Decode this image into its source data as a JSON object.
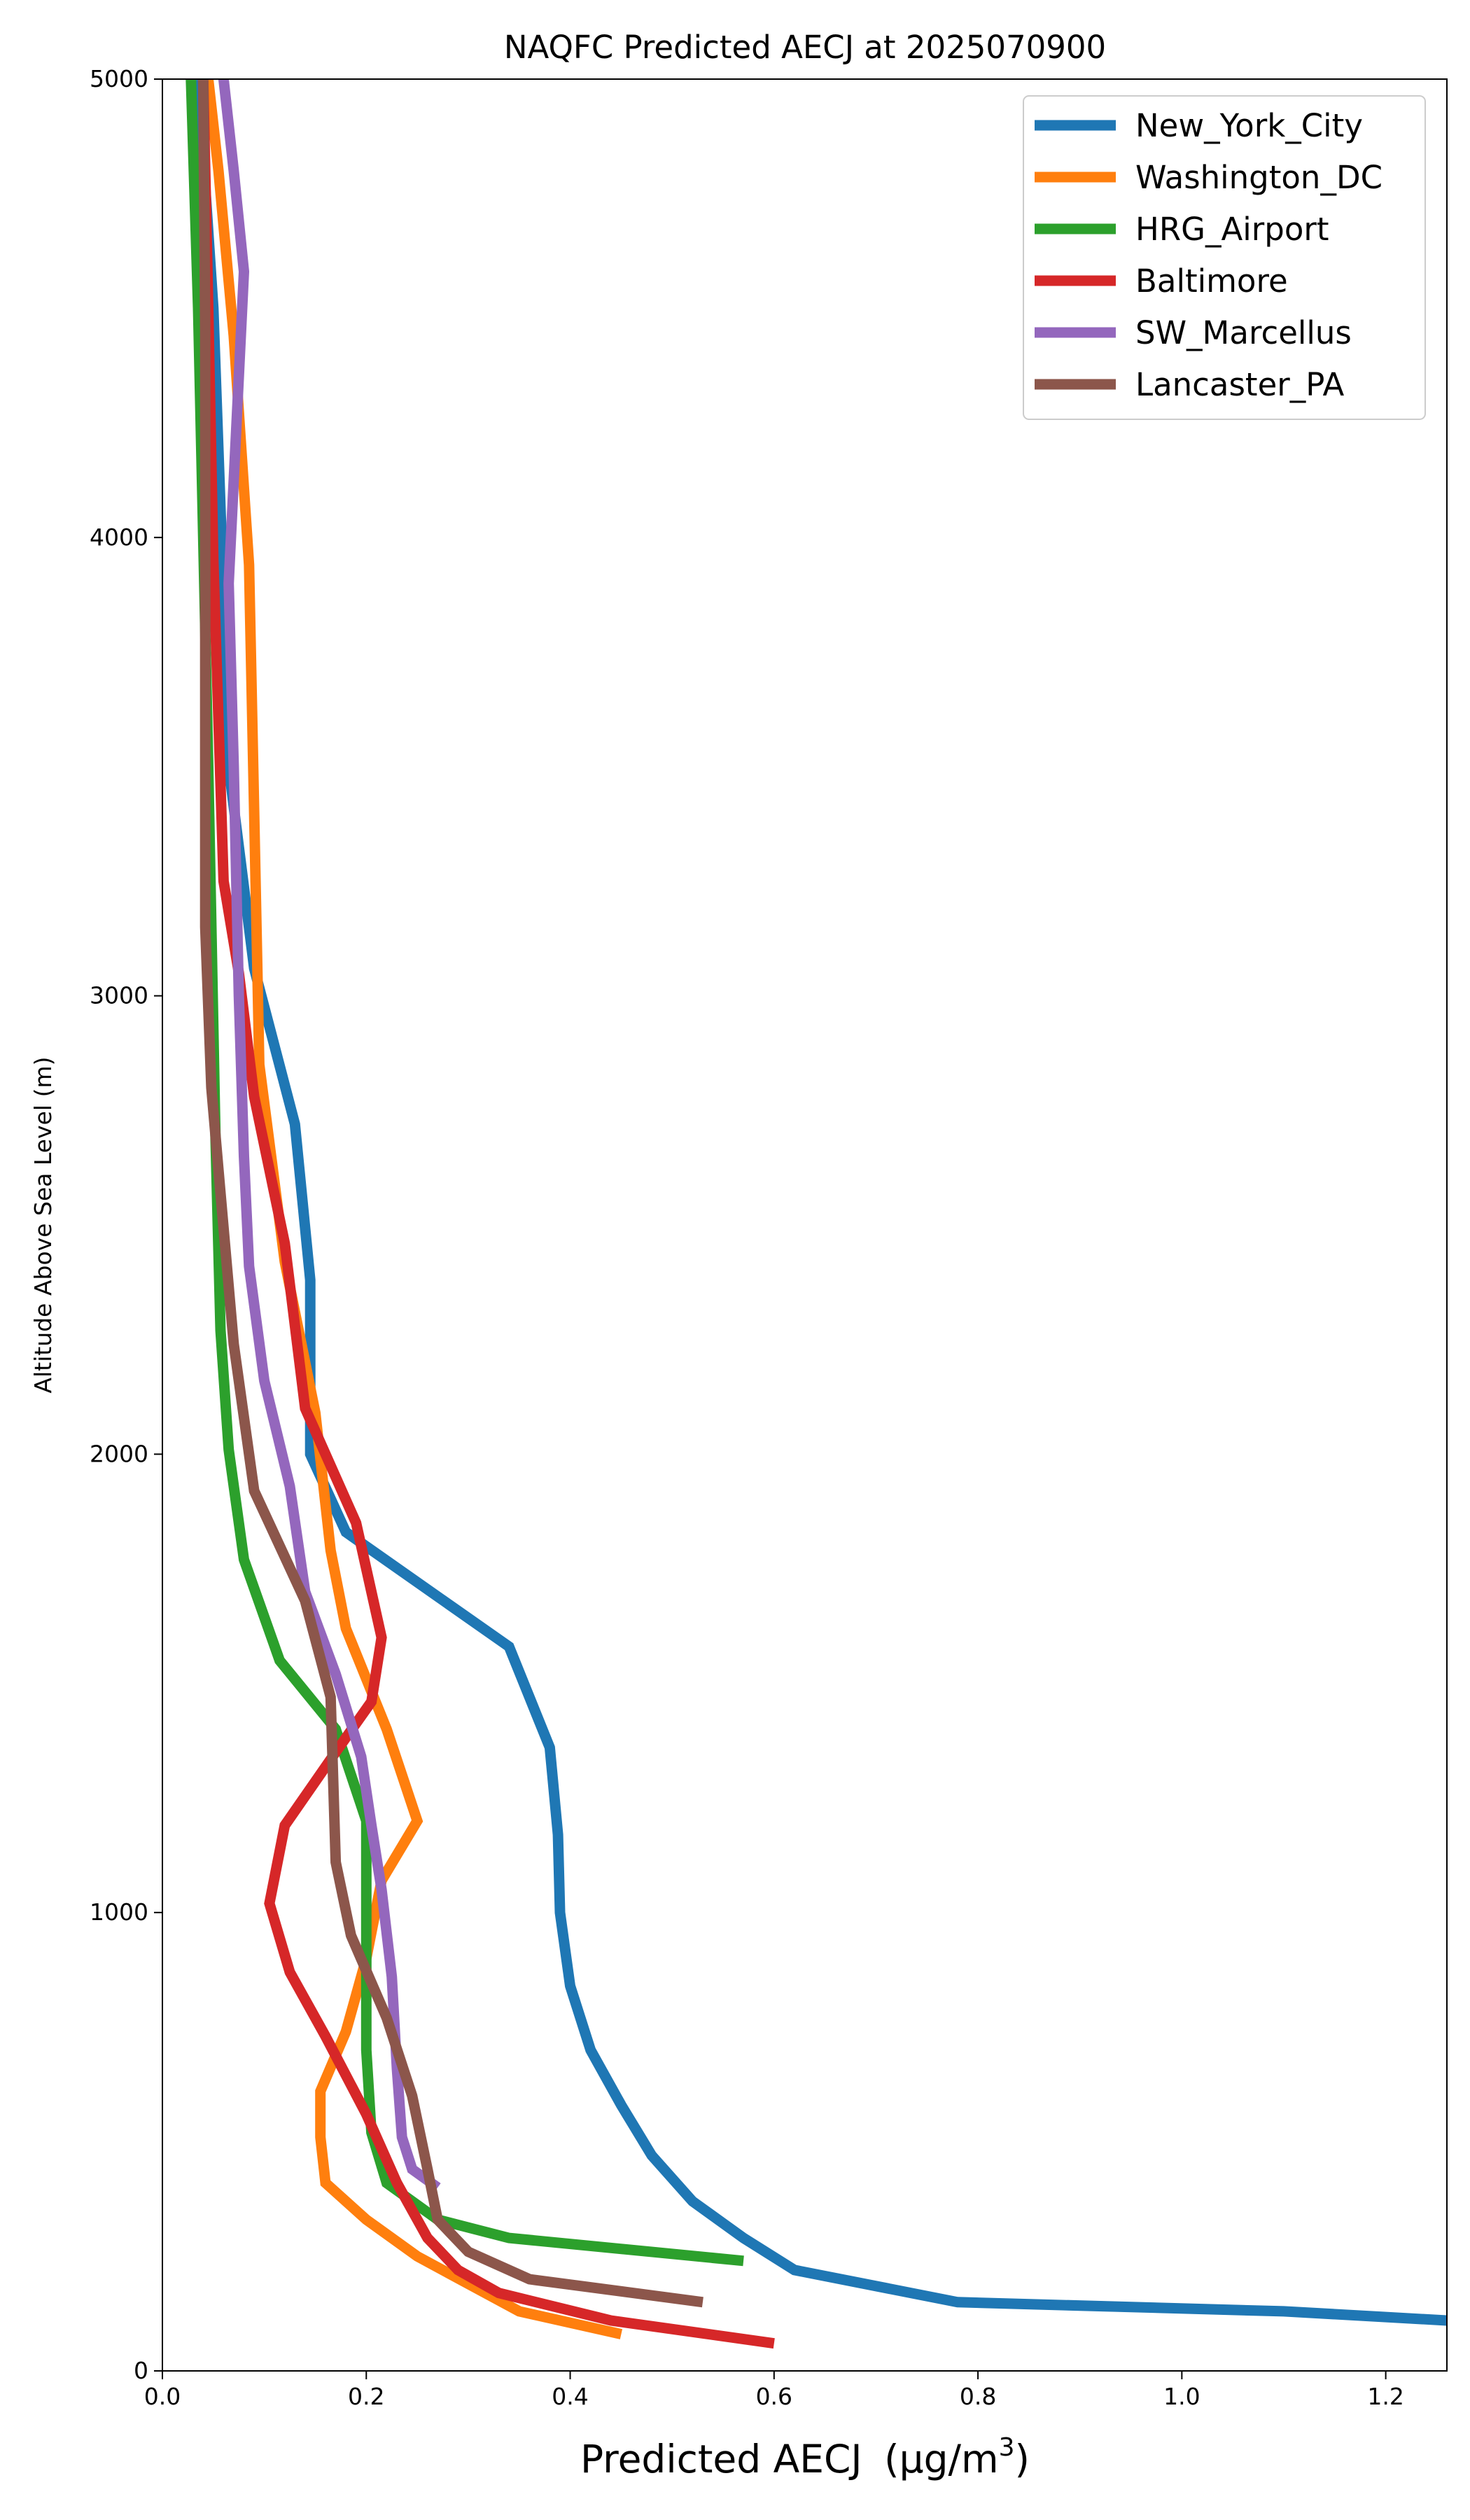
{
  "chart_data": {
    "type": "line",
    "title": "NAQFC Predicted AECJ at 2025070900",
    "xlabel": "Predicted AECJ",
    "xlabel_unit_prefix": "(μg/m",
    "xlabel_unit_exp": "3",
    "xlabel_unit_suffix": ")",
    "ylabel": "Altitude Above Sea Level (m)",
    "xlim": [
      0,
      1.26
    ],
    "ylim": [
      0,
      5000
    ],
    "xticks": [
      0.0,
      0.2,
      0.4,
      0.6,
      0.8,
      1.0,
      1.2
    ],
    "xtick_labels": [
      "0.0",
      "0.2",
      "0.4",
      "0.6",
      "0.8",
      "1.0",
      "1.2"
    ],
    "yticks": [
      0,
      1000,
      2000,
      3000,
      4000,
      5000
    ],
    "ytick_labels": [
      "0",
      "1000",
      "2000",
      "3000",
      "4000",
      "5000"
    ],
    "grid": false,
    "legend_position": "top-right",
    "series": [
      {
        "name": "New_York_City",
        "color": "#1f77b4",
        "points": [
          [
            1.26,
            110
          ],
          [
            1.1,
            130
          ],
          [
            0.78,
            150
          ],
          [
            0.62,
            220
          ],
          [
            0.57,
            290
          ],
          [
            0.52,
            370
          ],
          [
            0.48,
            470
          ],
          [
            0.45,
            580
          ],
          [
            0.42,
            700
          ],
          [
            0.4,
            840
          ],
          [
            0.39,
            1000
          ],
          [
            0.388,
            1170
          ],
          [
            0.38,
            1360
          ],
          [
            0.34,
            1580
          ],
          [
            0.18,
            1830
          ],
          [
            0.145,
            2000
          ],
          [
            0.145,
            2380
          ],
          [
            0.13,
            2720
          ],
          [
            0.09,
            3060
          ],
          [
            0.065,
            3500
          ],
          [
            0.058,
            4000
          ],
          [
            0.05,
            4500
          ],
          [
            0.035,
            5000
          ]
        ]
      },
      {
        "name": "Washington_DC",
        "color": "#ff7f0e",
        "points": [
          [
            0.45,
            80
          ],
          [
            0.35,
            130
          ],
          [
            0.25,
            250
          ],
          [
            0.2,
            330
          ],
          [
            0.16,
            410
          ],
          [
            0.155,
            510
          ],
          [
            0.155,
            610
          ],
          [
            0.18,
            740
          ],
          [
            0.2,
            900
          ],
          [
            0.215,
            1070
          ],
          [
            0.25,
            1200
          ],
          [
            0.22,
            1400
          ],
          [
            0.18,
            1620
          ],
          [
            0.165,
            1790
          ],
          [
            0.15,
            2090
          ],
          [
            0.12,
            2420
          ],
          [
            0.095,
            2850
          ],
          [
            0.09,
            3400
          ],
          [
            0.085,
            3940
          ],
          [
            0.07,
            4440
          ],
          [
            0.055,
            4800
          ],
          [
            0.045,
            5000
          ]
        ]
      },
      {
        "name": "HRG_Airport",
        "color": "#2ca02c",
        "points": [
          [
            0.57,
            240
          ],
          [
            0.34,
            290
          ],
          [
            0.27,
            330
          ],
          [
            0.22,
            410
          ],
          [
            0.205,
            520
          ],
          [
            0.2,
            700
          ],
          [
            0.2,
            900
          ],
          [
            0.2,
            1200
          ],
          [
            0.17,
            1400
          ],
          [
            0.115,
            1550
          ],
          [
            0.08,
            1770
          ],
          [
            0.065,
            2010
          ],
          [
            0.057,
            2270
          ],
          [
            0.052,
            2700
          ],
          [
            0.045,
            3500
          ],
          [
            0.04,
            4000
          ],
          [
            0.035,
            4500
          ],
          [
            0.028,
            5000
          ]
        ]
      },
      {
        "name": "Baltimore",
        "color": "#d62728",
        "points": [
          [
            0.6,
            60
          ],
          [
            0.44,
            110
          ],
          [
            0.33,
            170
          ],
          [
            0.29,
            220
          ],
          [
            0.26,
            290
          ],
          [
            0.23,
            410
          ],
          [
            0.2,
            560
          ],
          [
            0.16,
            730
          ],
          [
            0.125,
            870
          ],
          [
            0.105,
            1020
          ],
          [
            0.12,
            1190
          ],
          [
            0.17,
            1350
          ],
          [
            0.205,
            1460
          ],
          [
            0.215,
            1600
          ],
          [
            0.19,
            1850
          ],
          [
            0.14,
            2100
          ],
          [
            0.12,
            2460
          ],
          [
            0.09,
            2780
          ],
          [
            0.075,
            3050
          ],
          [
            0.06,
            3250
          ],
          [
            0.05,
            3950
          ],
          [
            0.045,
            4500
          ],
          [
            0.04,
            5000
          ]
        ]
      },
      {
        "name": "SW_Marcellus",
        "color": "#9467bd",
        "points": [
          [
            0.27,
            400
          ],
          [
            0.245,
            440
          ],
          [
            0.235,
            510
          ],
          [
            0.23,
            660
          ],
          [
            0.225,
            860
          ],
          [
            0.215,
            1050
          ],
          [
            0.205,
            1190
          ],
          [
            0.195,
            1340
          ],
          [
            0.17,
            1520
          ],
          [
            0.14,
            1700
          ],
          [
            0.125,
            1930
          ],
          [
            0.1,
            2160
          ],
          [
            0.085,
            2410
          ],
          [
            0.08,
            2650
          ],
          [
            0.075,
            3000
          ],
          [
            0.07,
            3500
          ],
          [
            0.065,
            3900
          ],
          [
            0.08,
            4580
          ],
          [
            0.07,
            4800
          ],
          [
            0.06,
            5000
          ]
        ]
      },
      {
        "name": "Lancaster_PA",
        "color": "#8c564b",
        "points": [
          [
            0.53,
            150
          ],
          [
            0.36,
            200
          ],
          [
            0.3,
            260
          ],
          [
            0.27,
            330
          ],
          [
            0.26,
            440
          ],
          [
            0.245,
            600
          ],
          [
            0.22,
            770
          ],
          [
            0.185,
            950
          ],
          [
            0.17,
            1110
          ],
          [
            0.165,
            1470
          ],
          [
            0.14,
            1680
          ],
          [
            0.09,
            1920
          ],
          [
            0.07,
            2240
          ],
          [
            0.055,
            2620
          ],
          [
            0.048,
            2800
          ],
          [
            0.042,
            3150
          ],
          [
            0.042,
            3600
          ],
          [
            0.042,
            4000
          ],
          [
            0.042,
            4450
          ],
          [
            0.04,
            5000
          ]
        ]
      }
    ]
  }
}
